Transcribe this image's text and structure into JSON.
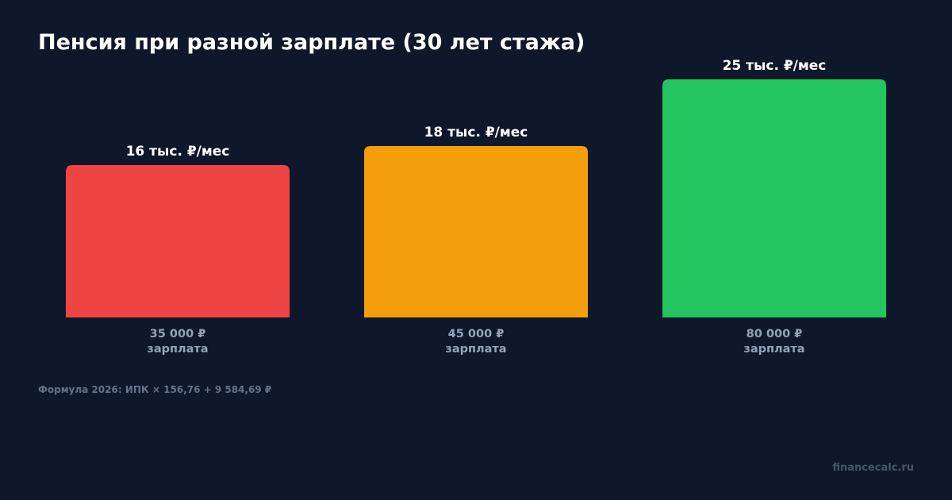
{
  "chart_data": {
    "type": "bar",
    "title": "Пенсия при разной зарплате (30 лет стажа)",
    "categories": [
      "35 000 ₽",
      "45 000 ₽",
      "80 000 ₽"
    ],
    "category_sublabel": "зарплата",
    "values": [
      16,
      18,
      25
    ],
    "value_labels": [
      "16 тыс. ₽/мес",
      "18 тыс. ₽/мес",
      "25 тыс. ₽/мес"
    ],
    "colors": [
      "#ef4444",
      "#f59e0b",
      "#22c55e"
    ],
    "ylim": [
      0,
      25
    ],
    "grid": false,
    "legend": "none"
  },
  "footnote": "Формула 2026: ИПК × 156,76 + 9 584,69 ₽",
  "watermark": "financecalc.ru"
}
